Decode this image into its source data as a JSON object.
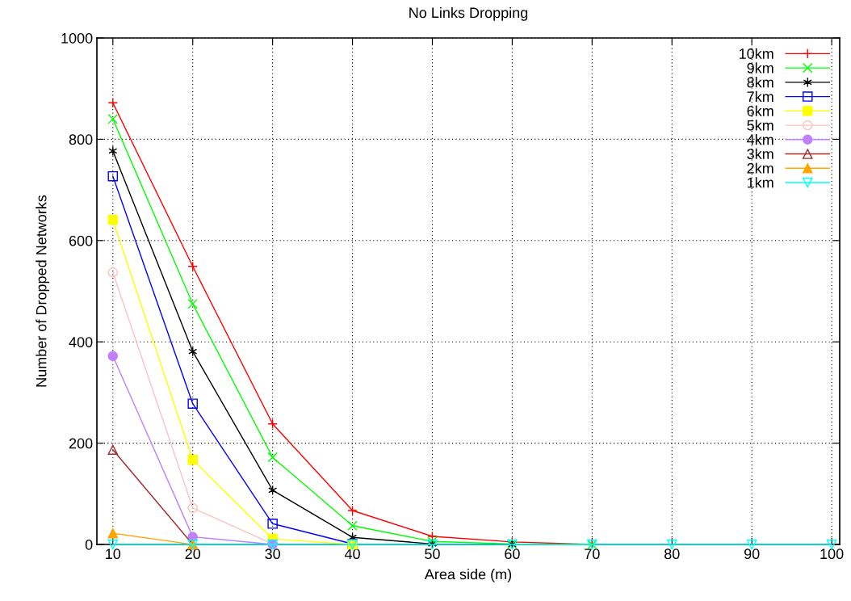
{
  "chart_data": {
    "type": "line",
    "title": "No Links Dropping",
    "xlabel": "Area side (m)",
    "ylabel": "Number of Dropped Networks",
    "x": [
      10,
      20,
      30,
      40,
      50,
      60,
      70,
      80,
      90,
      100
    ],
    "xlim": [
      8,
      101
    ],
    "xticks": [
      10,
      20,
      30,
      40,
      50,
      60,
      70,
      80,
      90,
      100
    ],
    "ylim": [
      0,
      1000
    ],
    "yticks": [
      0,
      200,
      400,
      600,
      800,
      1000
    ],
    "grid": true,
    "legend": "top right",
    "series": [
      {
        "name": "10km",
        "color": "#ff0000",
        "marker": "plus",
        "values": [
          872,
          549,
          238,
          67,
          16,
          5,
          0,
          null,
          null,
          null
        ]
      },
      {
        "name": "9km",
        "color": "#00ff00",
        "marker": "x",
        "values": [
          840,
          475,
          172,
          37,
          6,
          1,
          0,
          null,
          null,
          null
        ]
      },
      {
        "name": "8km",
        "color": "#000000",
        "marker": "cross",
        "values": [
          777,
          381,
          107,
          14,
          1,
          0,
          null,
          null,
          null,
          null
        ]
      },
      {
        "name": "7km",
        "color": "#0000ff",
        "marker": "square",
        "values": [
          727,
          278,
          41,
          1,
          null,
          null,
          null,
          null,
          null,
          null
        ]
      },
      {
        "name": "6km",
        "color": "#ffff00",
        "marker": "square filled",
        "values": [
          641,
          167,
          11,
          0,
          null,
          null,
          null,
          null,
          null,
          null
        ]
      },
      {
        "name": "5km",
        "color": "#ffc0c0",
        "marker": "circle",
        "values": [
          537,
          72,
          1,
          null,
          null,
          null,
          null,
          null,
          null,
          null
        ]
      },
      {
        "name": "4km",
        "color": "#c080ff",
        "marker": "circle filled",
        "values": [
          372,
          15,
          0,
          null,
          null,
          null,
          null,
          null,
          null,
          null
        ]
      },
      {
        "name": "3km",
        "color": "#a52a2a",
        "marker": "triangle",
        "values": [
          187,
          0,
          null,
          null,
          null,
          null,
          null,
          null,
          null,
          null
        ]
      },
      {
        "name": "2km",
        "color": "#ffa500",
        "marker": "triangle filled",
        "values": [
          22,
          0,
          null,
          null,
          null,
          null,
          null,
          null,
          null,
          null
        ]
      },
      {
        "name": "1km",
        "color": "#00ffff",
        "marker": "triangle down",
        "values": [
          0,
          0,
          0,
          0,
          0,
          0,
          0,
          0,
          0,
          0
        ]
      }
    ]
  }
}
